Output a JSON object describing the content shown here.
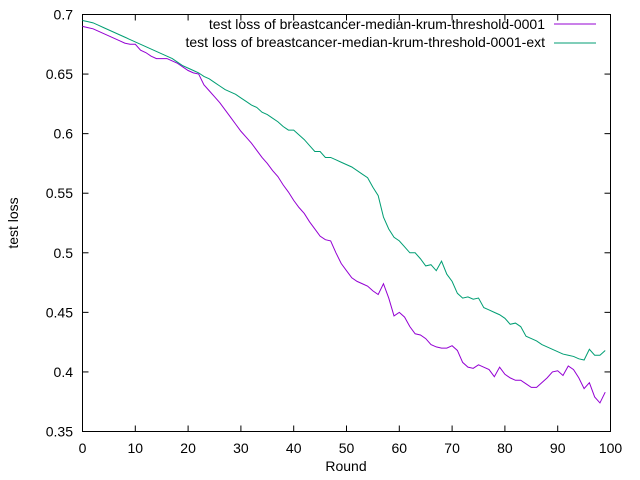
{
  "chart_data": {
    "type": "line",
    "title": "",
    "xlabel": "Round",
    "ylabel": "test loss",
    "xlim": [
      0,
      100
    ],
    "ylim": [
      0.35,
      0.7
    ],
    "xticks": [
      0,
      10,
      20,
      30,
      40,
      50,
      60,
      70,
      80,
      90,
      100
    ],
    "yticks": [
      0.35,
      0.4,
      0.45,
      0.5,
      0.55,
      0.6,
      0.65,
      0.7
    ],
    "xtick_labels": [
      "0",
      "10",
      "20",
      "30",
      "40",
      "50",
      "60",
      "70",
      "80",
      "90",
      "100"
    ],
    "ytick_labels": [
      "0.35",
      "0.4",
      "0.45",
      "0.5",
      "0.55",
      "0.6",
      "0.65",
      "0.7"
    ],
    "grid": false,
    "legend_position": "top-right",
    "series": [
      {
        "name": "test loss of breastcancer-median-krum-threshold-0001",
        "color": "#9400d3",
        "x": [
          0,
          1,
          2,
          3,
          4,
          5,
          6,
          7,
          8,
          9,
          10,
          11,
          12,
          13,
          14,
          15,
          16,
          17,
          18,
          19,
          20,
          21,
          22,
          23,
          24,
          25,
          26,
          27,
          28,
          29,
          30,
          31,
          32,
          33,
          34,
          35,
          36,
          37,
          38,
          39,
          40,
          41,
          42,
          43,
          44,
          45,
          46,
          47,
          48,
          49,
          50,
          51,
          52,
          53,
          54,
          55,
          56,
          57,
          58,
          59,
          60,
          61,
          62,
          63,
          64,
          65,
          66,
          67,
          68,
          69,
          70,
          71,
          72,
          73,
          74,
          75,
          76,
          77,
          78,
          79,
          80,
          81,
          82,
          83,
          84,
          85,
          86,
          87,
          88,
          89,
          90,
          91,
          92,
          93,
          94,
          95,
          96,
          97,
          98,
          99
        ],
        "y": [
          0.69,
          0.689,
          0.688,
          0.686,
          0.684,
          0.682,
          0.68,
          0.678,
          0.676,
          0.675,
          0.675,
          0.67,
          0.668,
          0.665,
          0.663,
          0.663,
          0.663,
          0.661,
          0.659,
          0.656,
          0.653,
          0.651,
          0.65,
          0.641,
          0.636,
          0.631,
          0.626,
          0.62,
          0.614,
          0.608,
          0.602,
          0.597,
          0.592,
          0.586,
          0.58,
          0.575,
          0.569,
          0.564,
          0.557,
          0.551,
          0.544,
          0.538,
          0.533,
          0.526,
          0.52,
          0.514,
          0.511,
          0.51,
          0.5,
          0.491,
          0.485,
          0.479,
          0.476,
          0.474,
          0.472,
          0.468,
          0.465,
          0.474,
          0.462,
          0.447,
          0.45,
          0.446,
          0.438,
          0.432,
          0.431,
          0.428,
          0.423,
          0.421,
          0.42,
          0.42,
          0.422,
          0.418,
          0.408,
          0.404,
          0.403,
          0.406,
          0.404,
          0.402,
          0.396,
          0.404,
          0.398,
          0.395,
          0.393,
          0.393,
          0.39,
          0.387,
          0.387,
          0.391,
          0.395,
          0.4,
          0.401,
          0.397,
          0.405,
          0.402,
          0.395,
          0.386,
          0.391,
          0.379,
          0.374,
          0.383
        ]
      },
      {
        "name": "test loss of breastcancer-median-krum-threshold-0001-ext",
        "color": "#009e73",
        "x": [
          0,
          1,
          2,
          3,
          4,
          5,
          6,
          7,
          8,
          9,
          10,
          11,
          12,
          13,
          14,
          15,
          16,
          17,
          18,
          19,
          20,
          21,
          22,
          23,
          24,
          25,
          26,
          27,
          28,
          29,
          30,
          31,
          32,
          33,
          34,
          35,
          36,
          37,
          38,
          39,
          40,
          41,
          42,
          43,
          44,
          45,
          46,
          47,
          48,
          49,
          50,
          51,
          52,
          53,
          54,
          55,
          56,
          57,
          58,
          59,
          60,
          61,
          62,
          63,
          64,
          65,
          66,
          67,
          68,
          69,
          70,
          71,
          72,
          73,
          74,
          75,
          76,
          77,
          78,
          79,
          80,
          81,
          82,
          83,
          84,
          85,
          86,
          87,
          88,
          89,
          90,
          91,
          92,
          93,
          94,
          95,
          96,
          97,
          98,
          99
        ],
        "y": [
          0.695,
          0.694,
          0.693,
          0.691,
          0.689,
          0.687,
          0.685,
          0.683,
          0.681,
          0.679,
          0.677,
          0.675,
          0.673,
          0.671,
          0.669,
          0.667,
          0.665,
          0.663,
          0.66,
          0.657,
          0.655,
          0.653,
          0.651,
          0.648,
          0.646,
          0.643,
          0.64,
          0.637,
          0.635,
          0.633,
          0.63,
          0.627,
          0.624,
          0.622,
          0.618,
          0.616,
          0.613,
          0.61,
          0.606,
          0.603,
          0.603,
          0.599,
          0.595,
          0.59,
          0.585,
          0.585,
          0.58,
          0.58,
          0.578,
          0.576,
          0.574,
          0.572,
          0.569,
          0.566,
          0.563,
          0.555,
          0.548,
          0.53,
          0.52,
          0.513,
          0.51,
          0.505,
          0.5,
          0.5,
          0.495,
          0.489,
          0.49,
          0.485,
          0.493,
          0.482,
          0.476,
          0.466,
          0.462,
          0.463,
          0.461,
          0.462,
          0.454,
          0.452,
          0.45,
          0.448,
          0.445,
          0.44,
          0.441,
          0.438,
          0.43,
          0.428,
          0.426,
          0.423,
          0.421,
          0.419,
          0.417,
          0.415,
          0.414,
          0.413,
          0.411,
          0.41,
          0.419,
          0.414,
          0.414,
          0.418
        ]
      }
    ]
  }
}
